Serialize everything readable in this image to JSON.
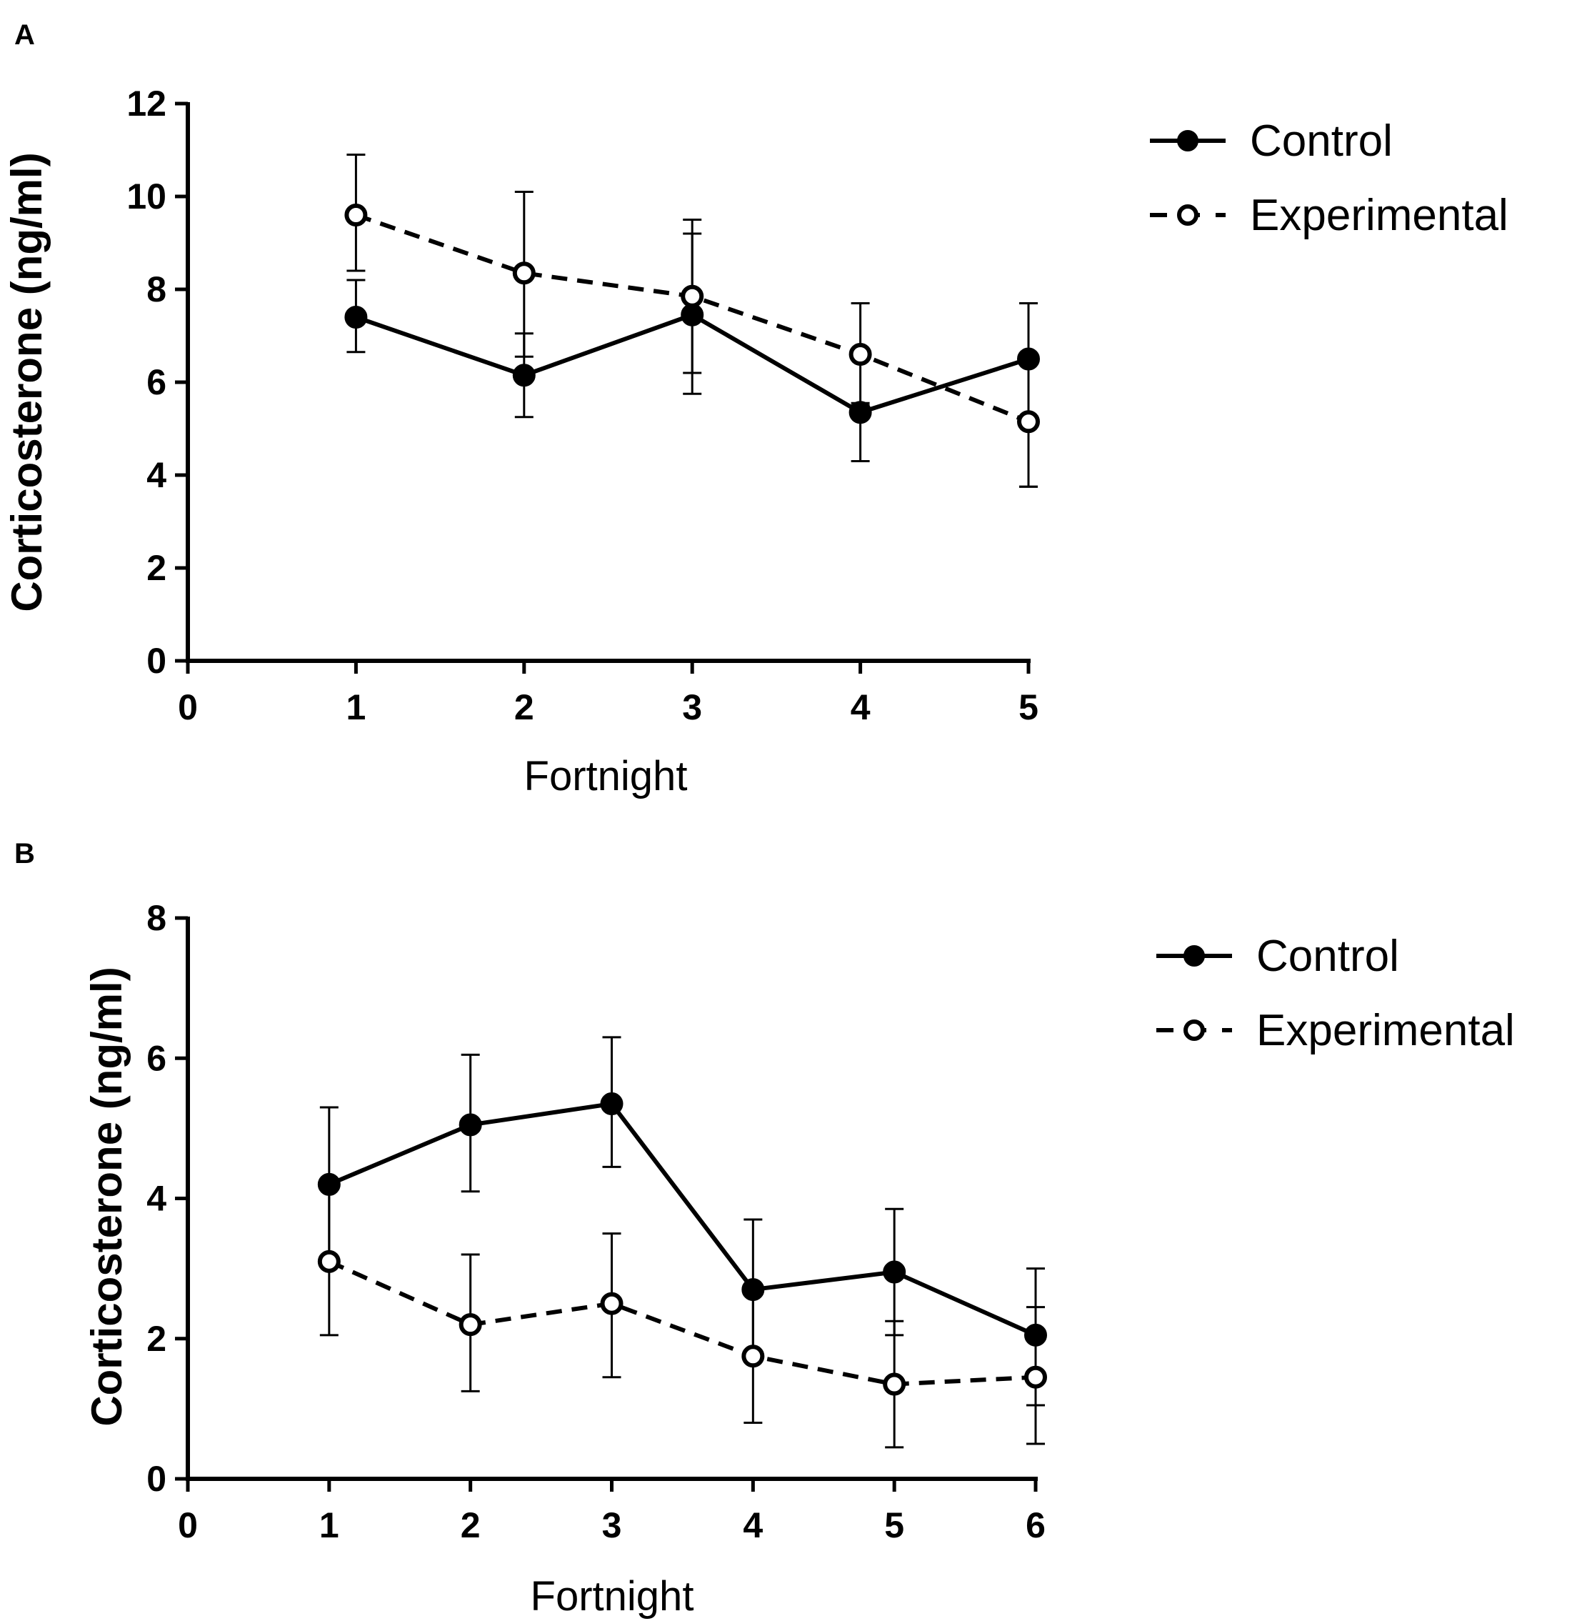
{
  "chart_data": [
    {
      "panel": "A",
      "type": "line",
      "xlabel": "Fortnight",
      "ylabel": "Corticosterone (ng/ml)",
      "xlim": [
        0,
        5
      ],
      "ylim": [
        0,
        12
      ],
      "xticks": [
        0,
        1,
        2,
        3,
        4,
        5
      ],
      "yticks": [
        0,
        2,
        4,
        6,
        8,
        10,
        12
      ],
      "legend_position": "top-right",
      "series": [
        {
          "name": "Control",
          "style": "solid-filled",
          "x": [
            1,
            2,
            3,
            4,
            5
          ],
          "y": [
            7.4,
            6.15,
            7.45,
            5.35,
            6.5
          ],
          "err_low": [
            6.65,
            5.25,
            5.75,
            4.3,
            3.75
          ],
          "err_high": [
            8.2,
            7.05,
            9.2,
            5.55,
            7.7
          ]
        },
        {
          "name": "Experimental",
          "style": "dashed-open",
          "x": [
            1,
            2,
            3,
            4,
            5
          ],
          "y": [
            9.6,
            8.35,
            7.85,
            6.6,
            5.15
          ],
          "err_low": [
            8.4,
            6.55,
            6.2,
            5.5,
            3.75
          ],
          "err_high": [
            10.9,
            10.1,
            9.5,
            7.7,
            6.5
          ]
        }
      ]
    },
    {
      "panel": "B",
      "type": "line",
      "xlabel": "Fortnight",
      "ylabel": "Corticosterone  (ng/ml)",
      "xlim": [
        0,
        6
      ],
      "ylim": [
        0,
        8
      ],
      "xticks": [
        0,
        1,
        2,
        3,
        4,
        5,
        6
      ],
      "yticks": [
        0,
        2,
        4,
        6,
        8
      ],
      "legend_position": "top-right",
      "series": [
        {
          "name": "Control",
          "style": "solid-filled",
          "x": [
            1,
            2,
            3,
            4,
            5,
            6
          ],
          "y": [
            4.2,
            5.05,
            5.35,
            2.7,
            2.95,
            2.05
          ],
          "err_low": [
            3.1,
            4.1,
            4.45,
            1.75,
            2.05,
            1.05
          ],
          "err_high": [
            5.3,
            6.05,
            6.3,
            3.7,
            3.85,
            3.0
          ]
        },
        {
          "name": "Experimental",
          "style": "dashed-open",
          "x": [
            1,
            2,
            3,
            4,
            5,
            6
          ],
          "y": [
            3.1,
            2.2,
            2.5,
            1.75,
            1.35,
            1.45
          ],
          "err_low": [
            2.05,
            1.25,
            1.45,
            0.8,
            0.45,
            0.5
          ],
          "err_high": [
            4.2,
            3.2,
            3.5,
            2.7,
            2.25,
            2.45
          ]
        }
      ]
    }
  ]
}
